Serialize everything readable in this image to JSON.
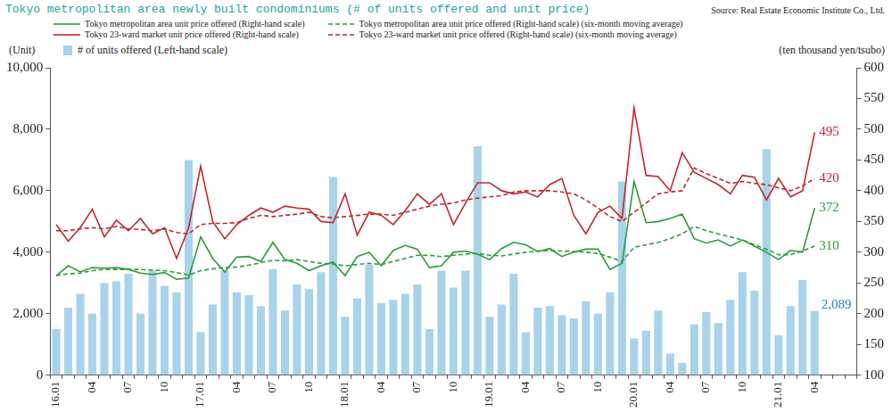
{
  "chart_data": {
    "type": "bar",
    "title": "Tokyo metropolitan area newly built condominiums (# of units offered and unit price)",
    "source": "Source: Real Estate Economic Institute Co., Ltd.",
    "y_label": "(Unit)",
    "y2_label": "(ten thousand yen/tsubo)",
    "legend": "top",
    "grid": false,
    "categories": [
      "16.01",
      null,
      null,
      "04",
      null,
      null,
      "07",
      null,
      null,
      "10",
      null,
      null,
      "17.01",
      null,
      null,
      "04",
      null,
      null,
      "07",
      null,
      null,
      "10",
      null,
      null,
      "18.01",
      null,
      null,
      "04",
      null,
      null,
      "07",
      null,
      null,
      "10",
      null,
      null,
      "19.01",
      null,
      null,
      "04",
      null,
      null,
      "07",
      null,
      null,
      "10",
      null,
      null,
      "20.01",
      null,
      null,
      "04",
      null,
      null,
      "07",
      null,
      null,
      "10",
      null,
      null,
      "21.01",
      null,
      null,
      "04"
    ],
    "ylim": [
      0,
      10000
    ],
    "yticks": [
      0,
      {
        "value": 2000,
        "label": "2,000"
      },
      {
        "value": 4000,
        "label": "4,000"
      },
      {
        "value": 6000,
        "label": "6,000"
      },
      {
        "value": 8000,
        "label": "8,000"
      },
      {
        "value": 10000,
        "label": "10,000"
      }
    ],
    "y2lim": [
      100,
      600
    ],
    "y2ticks": [
      100,
      150,
      200,
      250,
      300,
      350,
      400,
      450,
      500,
      550,
      600
    ],
    "series": [
      {
        "name": "# of units offered (Left-hand scale)",
        "type": "bar",
        "color": "#a9d3e9",
        "values": [
          1500,
          2200,
          2650,
          2000,
          3000,
          3050,
          3300,
          2000,
          3400,
          2900,
          2700,
          7000,
          1400,
          2300,
          3400,
          2700,
          2600,
          2250,
          3450,
          2100,
          2950,
          2800,
          3350,
          6450,
          1900,
          2500,
          3600,
          2350,
          2450,
          2650,
          2950,
          1500,
          3400,
          2850,
          3400,
          7450,
          1900,
          2300,
          3300,
          1400,
          2200,
          2250,
          1950,
          1850,
          2400,
          2000,
          2700,
          6300,
          1200,
          1450,
          2100,
          700,
          400,
          1650,
          2050,
          1700,
          2450,
          3350,
          2750,
          7350,
          1300,
          2250,
          3100,
          2089
        ]
      },
      {
        "name": "Tokyo metropolitan area unit price offered (Right-hand scale)",
        "type": "line",
        "axis": "y2",
        "color": "#2e9a3c",
        "line_style": "solid",
        "marker": "none",
        "values": [
          262,
          278,
          268,
          275,
          274,
          275,
          272,
          266,
          264,
          267,
          256,
          258,
          325,
          290,
          268,
          292,
          293,
          285,
          316,
          288,
          282,
          270,
          278,
          284,
          262,
          293,
          300,
          278,
          303,
          311,
          305,
          275,
          278,
          300,
          302,
          297,
          288,
          306,
          316,
          312,
          301,
          306,
          293,
          300,
          305,
          305,
          272,
          282,
          415,
          348,
          350,
          355,
          362,
          322,
          315,
          320,
          310,
          320,
          310,
          300,
          288,
          303,
          300,
          372
        ]
      },
      {
        "name": "Tokyo metropolitan area unit price offered (Right-hand scale) (six-month moving average)",
        "type": "line",
        "axis": "y2",
        "color": "#2e9a3c",
        "line_style": "dashed",
        "marker": "none",
        "values": [
          262,
          265,
          266,
          270,
          272,
          272,
          272,
          272,
          271,
          270,
          267,
          263,
          270,
          273,
          275,
          276,
          279,
          283,
          287,
          286,
          288,
          285,
          282,
          281,
          278,
          280,
          282,
          280,
          285,
          290,
          295,
          295,
          293,
          295,
          297,
          298,
          295,
          294,
          297,
          300,
          302,
          303,
          302,
          301,
          300,
          298,
          292,
          285,
          308,
          312,
          316,
          322,
          330,
          342,
          335,
          330,
          325,
          320,
          312,
          305,
          296,
          296,
          302,
          310
        ]
      },
      {
        "name": "Tokyo 23-ward market unit price offered (Right-hand scale)",
        "type": "line",
        "axis": "y2",
        "color": "#c1272d",
        "line_style": "solid",
        "marker": "none",
        "values": [
          345,
          318,
          340,
          370,
          325,
          352,
          335,
          355,
          330,
          340,
          290,
          340,
          440,
          350,
          322,
          345,
          360,
          372,
          365,
          375,
          372,
          370,
          350,
          348,
          395,
          328,
          365,
          360,
          345,
          368,
          395,
          378,
          395,
          345,
          380,
          413,
          413,
          400,
          395,
          398,
          390,
          410,
          420,
          360,
          330,
          365,
          375,
          355,
          535,
          425,
          423,
          400,
          462,
          430,
          420,
          410,
          395,
          425,
          422,
          385,
          420,
          390,
          400,
          495
        ]
      },
      {
        "name": "Tokyo 23-ward market unit price offered (Right-hand scale) (six-month moving average)",
        "type": "line",
        "axis": "y2",
        "color": "#c1272d",
        "line_style": "dashed",
        "marker": "none",
        "values": [
          335,
          335,
          338,
          340,
          338,
          342,
          338,
          337,
          335,
          338,
          332,
          330,
          345,
          347,
          347,
          348,
          355,
          360,
          358,
          360,
          362,
          365,
          358,
          356,
          358,
          360,
          362,
          362,
          360,
          365,
          370,
          375,
          378,
          380,
          385,
          388,
          390,
          392,
          398,
          400,
          400,
          400,
          398,
          395,
          385,
          372,
          358,
          350,
          365,
          380,
          395,
          398,
          400,
          437,
          428,
          420,
          412,
          415,
          412,
          410,
          405,
          400,
          408,
          420
        ]
      }
    ],
    "annotations": [
      {
        "text": "495",
        "series": "Tokyo 23-ward market unit price offered (Right-hand scale)",
        "color": "#c1272d"
      },
      {
        "text": "420",
        "series": "Tokyo 23-ward market unit price offered (Right-hand scale) (six-month moving average)",
        "color": "#c1272d"
      },
      {
        "text": "372",
        "series": "Tokyo metropolitan area unit price offered (Right-hand scale)",
        "color": "#2e9a3c"
      },
      {
        "text": "310",
        "series": "Tokyo metropolitan area unit price offered (Right-hand scale) (six-month moving average)",
        "color": "#2e9a3c"
      },
      {
        "text": "2,089",
        "series": "# of units offered (Left-hand scale)",
        "color": "#1f87b8"
      }
    ]
  }
}
